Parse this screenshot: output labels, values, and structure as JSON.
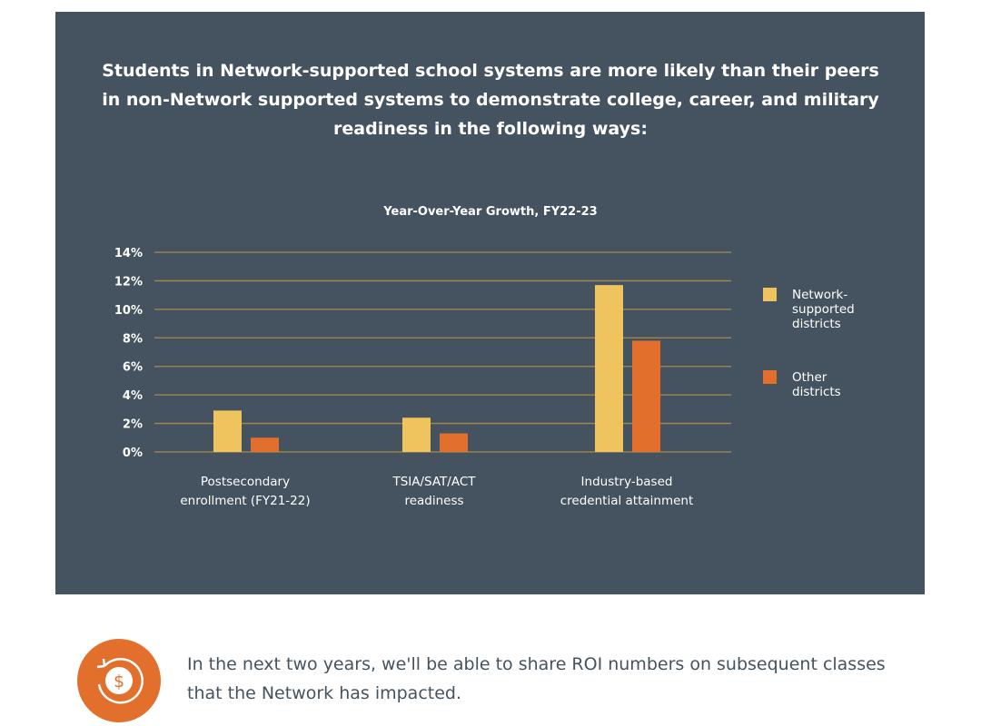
{
  "headline": "Students in Network-supported school systems are more likely than their peers in non-Network supported systems to demonstrate college, career, and military readiness in the following ways:",
  "footer": {
    "text": "In the next two years, we'll be able to share ROI numbers on subsequent classes that the Network has impacted.",
    "icon": "dollar-cycle-icon"
  },
  "chart_data": {
    "type": "bar",
    "title": "Year-Over-Year Growth, FY22-23",
    "categories": [
      [
        "Postsecondary",
        "enrollment (FY21-22)"
      ],
      [
        "TSIA/SAT/ACT",
        "readiness"
      ],
      [
        "Industry-based",
        "credential attainment"
      ]
    ],
    "series": [
      {
        "name": "Network-supported districts",
        "legend_lines": [
          "Network-",
          "supported",
          "districts"
        ],
        "color": "#efc35e",
        "values": [
          2.9,
          2.4,
          11.7
        ]
      },
      {
        "name": "Other districts",
        "legend_lines": [
          "Other",
          "districts"
        ],
        "color": "#e2702c",
        "values": [
          1.0,
          1.3,
          7.8
        ]
      }
    ],
    "ylim": [
      0,
      14
    ],
    "yticks": [
      "0%",
      "2%",
      "4%",
      "6%",
      "8%",
      "10%",
      "12%",
      "14%"
    ],
    "grid": true,
    "legend": "right",
    "gridColor": "#a88a4a"
  }
}
